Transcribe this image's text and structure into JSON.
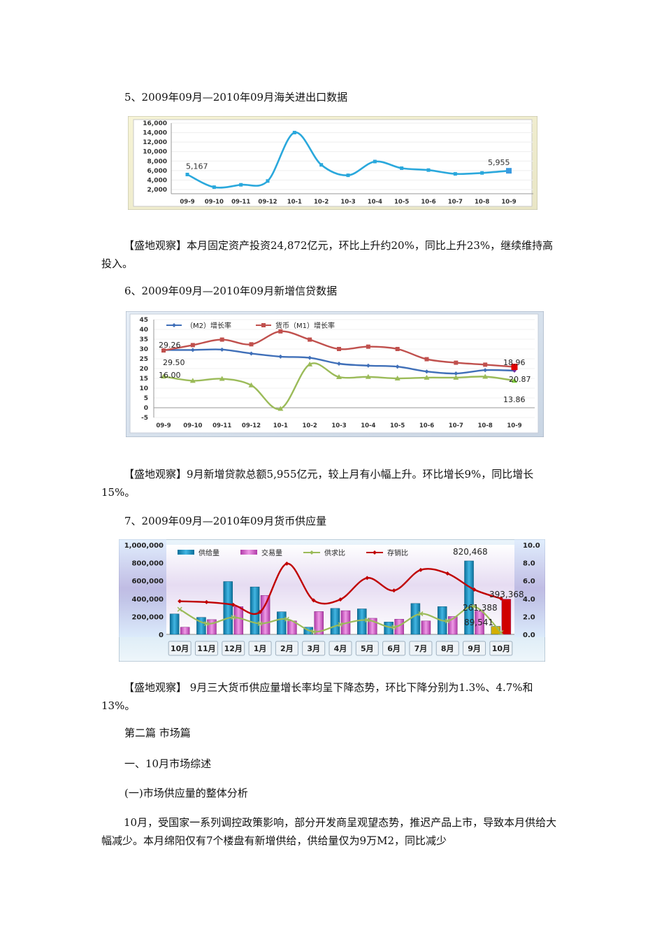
{
  "heading5": "5、2009年09月—2010年09月海关进出口数据",
  "obs1": "【盛地观察】本月固定资产投资24,872亿元，环比上升约20%，同比上升23%，继续维持高投入。",
  "heading6": "6、2009年09月—2010年09月新增信贷数据",
  "obs2": "【盛地观察】9月新增贷款总额5,955亿元，较上月有小幅上升。环比增长9%，同比增长15%。",
  "heading7": "7、2009年09月—2010年09月货币供应量",
  "obs3": "【盛地观察】 9月三大货币供应量增长率均呈下降态势，环比下降分别为1.3%、4.7%和13%。",
  "part2": "第二篇 市场篇",
  "sec1": "一、10月市场综述",
  "sub1": "(一)市场供应量的整体分析",
  "body1": "10月，受国家一系列调控政策影响，部分开发商呈观望态势，推迟产品上市，导致本月供给大幅减少。本月绵阳仅有7个楼盘有新增供给，供给量仅为9万M2，同比减少",
  "chart_data": [
    {
      "type": "line",
      "categories": [
        "09-9",
        "09-10",
        "09-11",
        "09-12",
        "10-1",
        "10-2",
        "10-3",
        "10-4",
        "10-5",
        "10-6",
        "10-7",
        "10-8",
        "10-9"
      ],
      "series": [
        {
          "name": "",
          "values": [
            5167,
            2500,
            3000,
            3800,
            14000,
            7200,
            5000,
            7900,
            6500,
            6100,
            5300,
            5500,
            5955
          ]
        }
      ],
      "data_labels": [
        "5,167",
        "5,955"
      ],
      "ylim": [
        2000,
        16000
      ],
      "yticks": [
        "2,000",
        "4,000",
        "6,000",
        "8,000",
        "10,000",
        "12,000",
        "14,000",
        "16,000"
      ]
    },
    {
      "type": "line",
      "categories": [
        "09-9",
        "09-10",
        "09-11",
        "09-12",
        "10-1",
        "10-2",
        "10-3",
        "10-4",
        "10-5",
        "10-6",
        "10-7",
        "10-8",
        "10-9"
      ],
      "legend": [
        "（M2）增长率",
        "货币（M1）增长率"
      ],
      "series": [
        {
          "name": "（M2）增长率",
          "values": [
            29.5,
            29.5,
            29.7,
            27.7,
            26.1,
            25.5,
            22.5,
            21.5,
            21.0,
            18.5,
            17.5,
            19.2,
            18.96
          ]
        },
        {
          "name": "货币（M1）增长率",
          "values": [
            29.26,
            32,
            34.8,
            32.4,
            39,
            34.8,
            30.0,
            31.2,
            30.0,
            24.8,
            23.0,
            22.0,
            20.87
          ]
        },
        {
          "name": "",
          "values": [
            16.0,
            13.8,
            14.8,
            11.5,
            -0.5,
            22.2,
            15.7,
            15.8,
            15.0,
            15.4,
            15.4,
            15.9,
            13.86
          ]
        }
      ],
      "data_labels": [
        "29.26",
        "29.50",
        "16.00",
        "18.96",
        "20.87",
        "13.86"
      ],
      "ylim": [
        -5,
        45
      ],
      "yticks": [
        "-5",
        "0",
        "5",
        "10",
        "15",
        "20",
        "25",
        "30",
        "35",
        "40",
        "45"
      ]
    },
    {
      "type": "bar",
      "categories": [
        "10月",
        "11月",
        "12月",
        "1月",
        "2月",
        "3月",
        "4月",
        "5月",
        "6月",
        "7月",
        "8月",
        "9月",
        "10月"
      ],
      "legend": [
        "供给量",
        "交易量",
        "供求比",
        "存销比"
      ],
      "series": [
        {
          "name": "供给量",
          "values": [
            228000,
            190000,
            590000,
            530000,
            252000,
            80000,
            290000,
            285000,
            138000,
            345000,
            310000,
            820468,
            89541
          ]
        },
        {
          "name": "交易量",
          "values": [
            80000,
            165000,
            310000,
            435000,
            150000,
            255000,
            265000,
            180000,
            170000,
            150000,
            200000,
            261388,
            393368
          ]
        },
        {
          "name": "供求比",
          "values": [
            2.8,
            1.2,
            1.9,
            1.2,
            1.7,
            0.3,
            1.1,
            1.6,
            0.8,
            2.3,
            1.5,
            3.1,
            0.2
          ]
        },
        {
          "name": "存销比",
          "values": [
            3.7,
            3.6,
            3.3,
            2.5,
            7.9,
            3.8,
            3.9,
            6.3,
            4.9,
            7.2,
            6.8,
            5.0,
            4.0
          ]
        }
      ],
      "data_labels": [
        "820,468",
        "393,368",
        "261,388",
        "89,541"
      ],
      "ylim_left": [
        0,
        1000000
      ],
      "ylim_right": [
        0,
        10
      ],
      "yticks_left": [
        "0",
        "200,000",
        "400,000",
        "600,000",
        "800,000",
        "1,000,000"
      ],
      "yticks_right": [
        "0.0",
        "2.0",
        "4.0",
        "6.0",
        "8.0",
        "10.0"
      ]
    }
  ],
  "colors": {
    "line1": "#2aa8dc",
    "m2": "#3f6fb8",
    "m1": "#c0504d",
    "c3": "#9bbb59",
    "supply": "#1a8fbf",
    "trade": "#c84fc0",
    "ratio1": "#9bbb59",
    "ratio2": "#c00000"
  }
}
